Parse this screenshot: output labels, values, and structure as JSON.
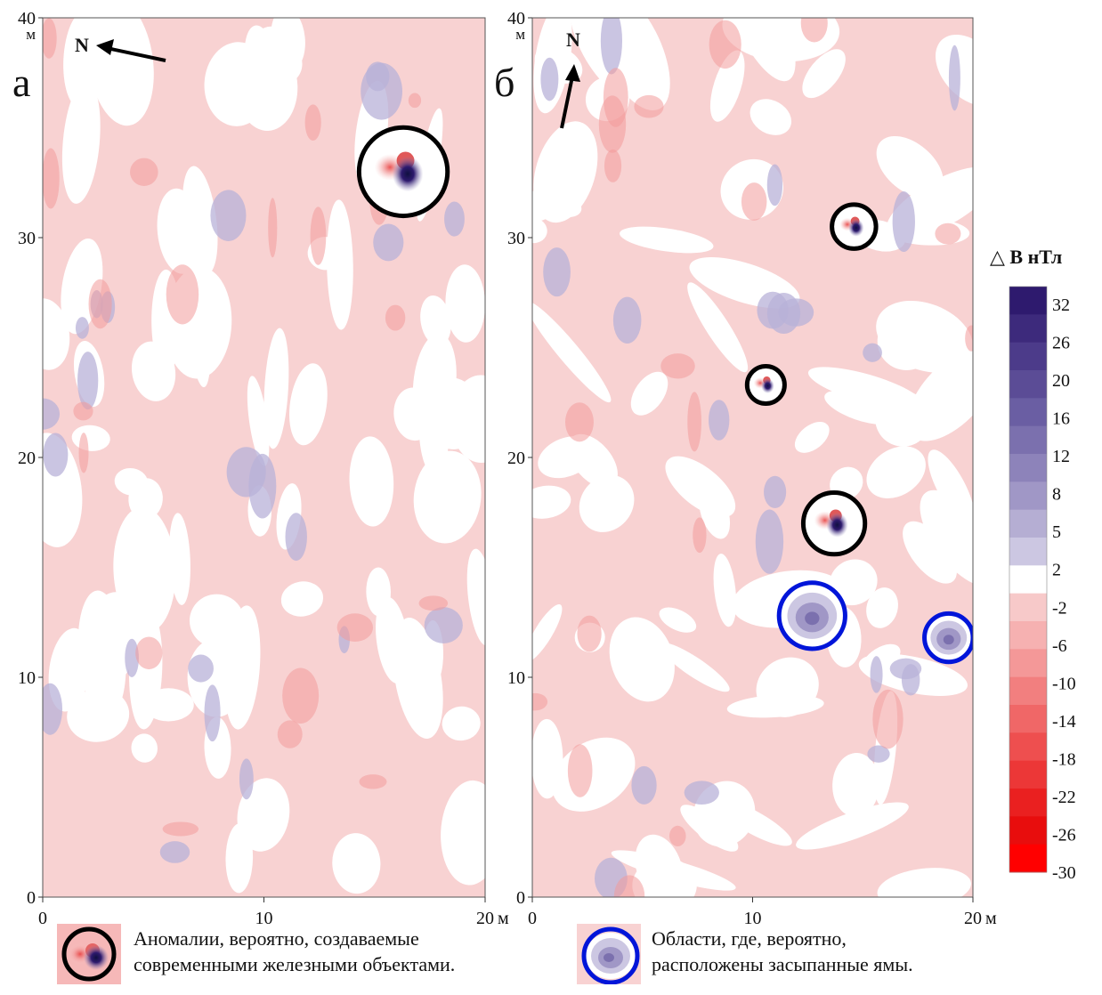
{
  "panels": [
    {
      "letter": "а",
      "north_label": "N",
      "x_ticks": [
        "0",
        "10",
        "20"
      ],
      "y_ticks": [
        "0",
        "10",
        "20",
        "30",
        "40"
      ],
      "unit": "м",
      "unit_x": "м",
      "markers": [
        {
          "type": "iron",
          "x": 16.3,
          "y": 33.0,
          "r": 2.0
        }
      ]
    },
    {
      "letter": "б",
      "north_label": "N",
      "x_ticks": [
        "0",
        "10",
        "20"
      ],
      "y_ticks": [
        "0",
        "10",
        "20",
        "30",
        "40"
      ],
      "unit": "м",
      "unit_x": "м",
      "markers": [
        {
          "type": "iron",
          "x": 14.6,
          "y": 30.5,
          "r": 1.0
        },
        {
          "type": "iron",
          "x": 10.6,
          "y": 23.3,
          "r": 0.85
        },
        {
          "type": "iron",
          "x": 13.7,
          "y": 17.0,
          "r": 1.4
        },
        {
          "type": "pit",
          "x": 12.7,
          "y": 12.8,
          "r": 1.5
        },
        {
          "type": "pit",
          "x": 18.9,
          "y": 11.8,
          "r": 1.1
        }
      ]
    }
  ],
  "colorbar": {
    "title": "△ B нТл",
    "ticks": [
      "32",
      "26",
      "20",
      "16",
      "12",
      "8",
      "5",
      "2",
      "-2",
      "-6",
      "-10",
      "-14",
      "-18",
      "-22",
      "-26",
      "-30"
    ],
    "colors": [
      "#2e1a6e",
      "#3d2a7c",
      "#4c3b8a",
      "#5b4c96",
      "#6a5ea3",
      "#7b70ae",
      "#8d83ba",
      "#a097c6",
      "#b5aed3",
      "#ccc7e2",
      "#ffffff",
      "#f7c9c9",
      "#f6b1b1",
      "#f49898",
      "#f27f7f",
      "#f06767",
      "#ee4f4f",
      "#ec3737",
      "#ea2020",
      "#e80d0d",
      "#ff0000"
    ]
  },
  "legend": [
    {
      "type": "iron",
      "text_lines": [
        "Аномалии, вероятно, создаваемые",
        "современными железными объектами."
      ]
    },
    {
      "type": "pit",
      "text_lines": [
        "Области, где, вероятно,",
        "расположены засыпанные ямы."
      ]
    }
  ],
  "style": {
    "background_pink": "#f8d2d2",
    "iron_circle": "#000000",
    "pit_circle": "#0015d9",
    "pos_color": "#b8b2d8",
    "neg_color": "#f29a9a"
  }
}
